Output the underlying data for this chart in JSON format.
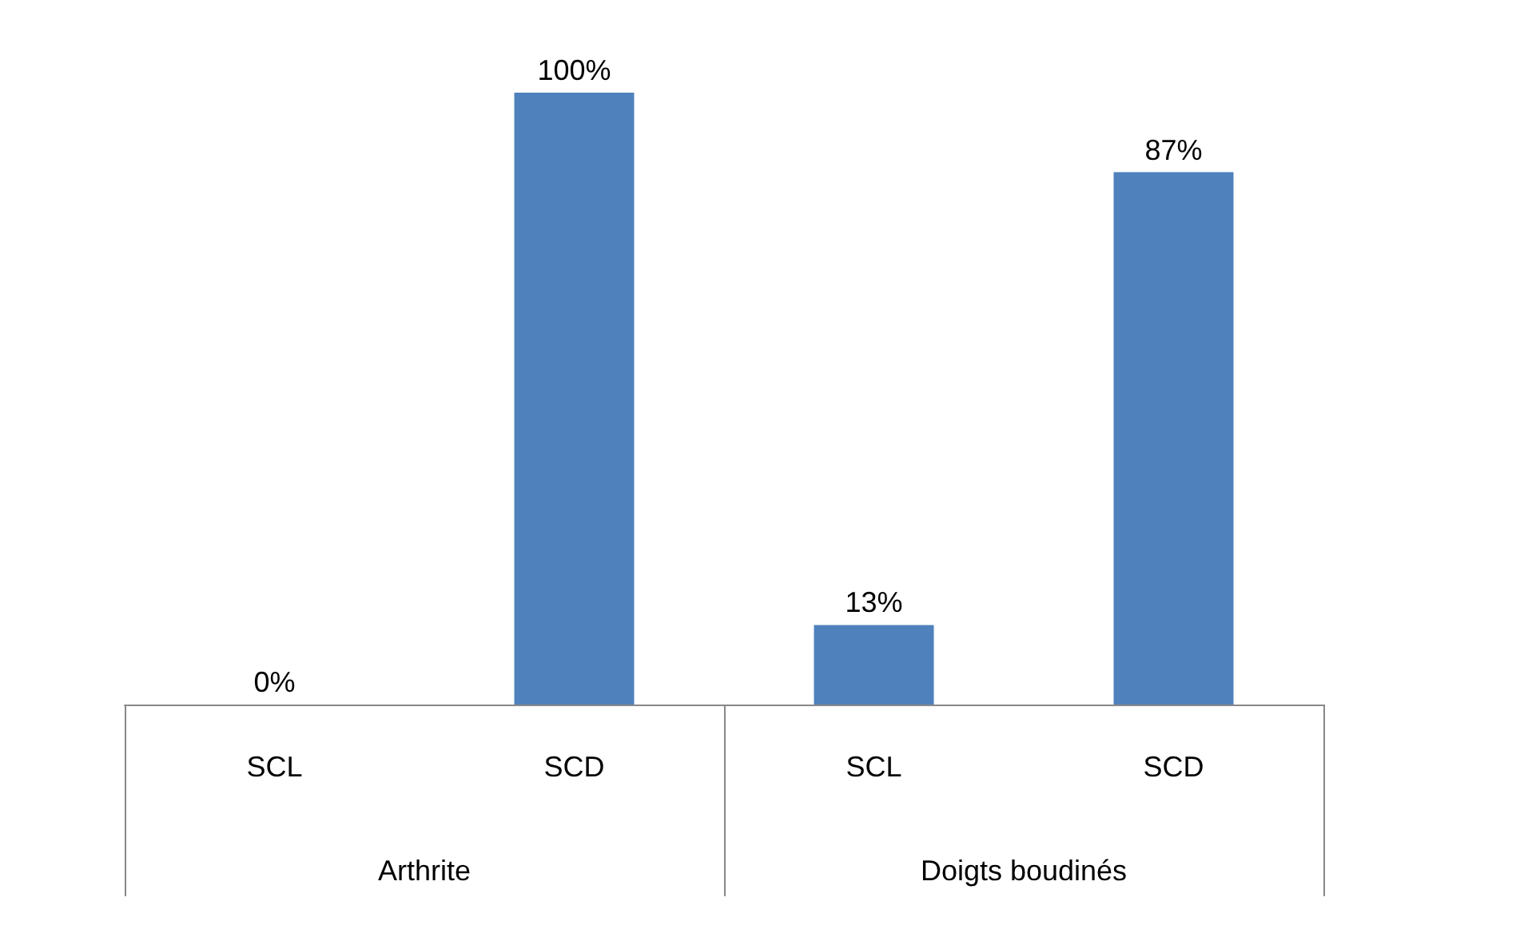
{
  "chart_data": {
    "type": "bar",
    "categories": [
      "SCL",
      "SCD",
      "SCL",
      "SCD"
    ],
    "values": [
      0,
      100,
      13,
      87
    ],
    "color": "#4f81bd",
    "value_labels": [
      "0%",
      "100%",
      "13%",
      "87%"
    ],
    "annotations": [
      "Arthrite",
      "Doigts boudinés"
    ]
  }
}
